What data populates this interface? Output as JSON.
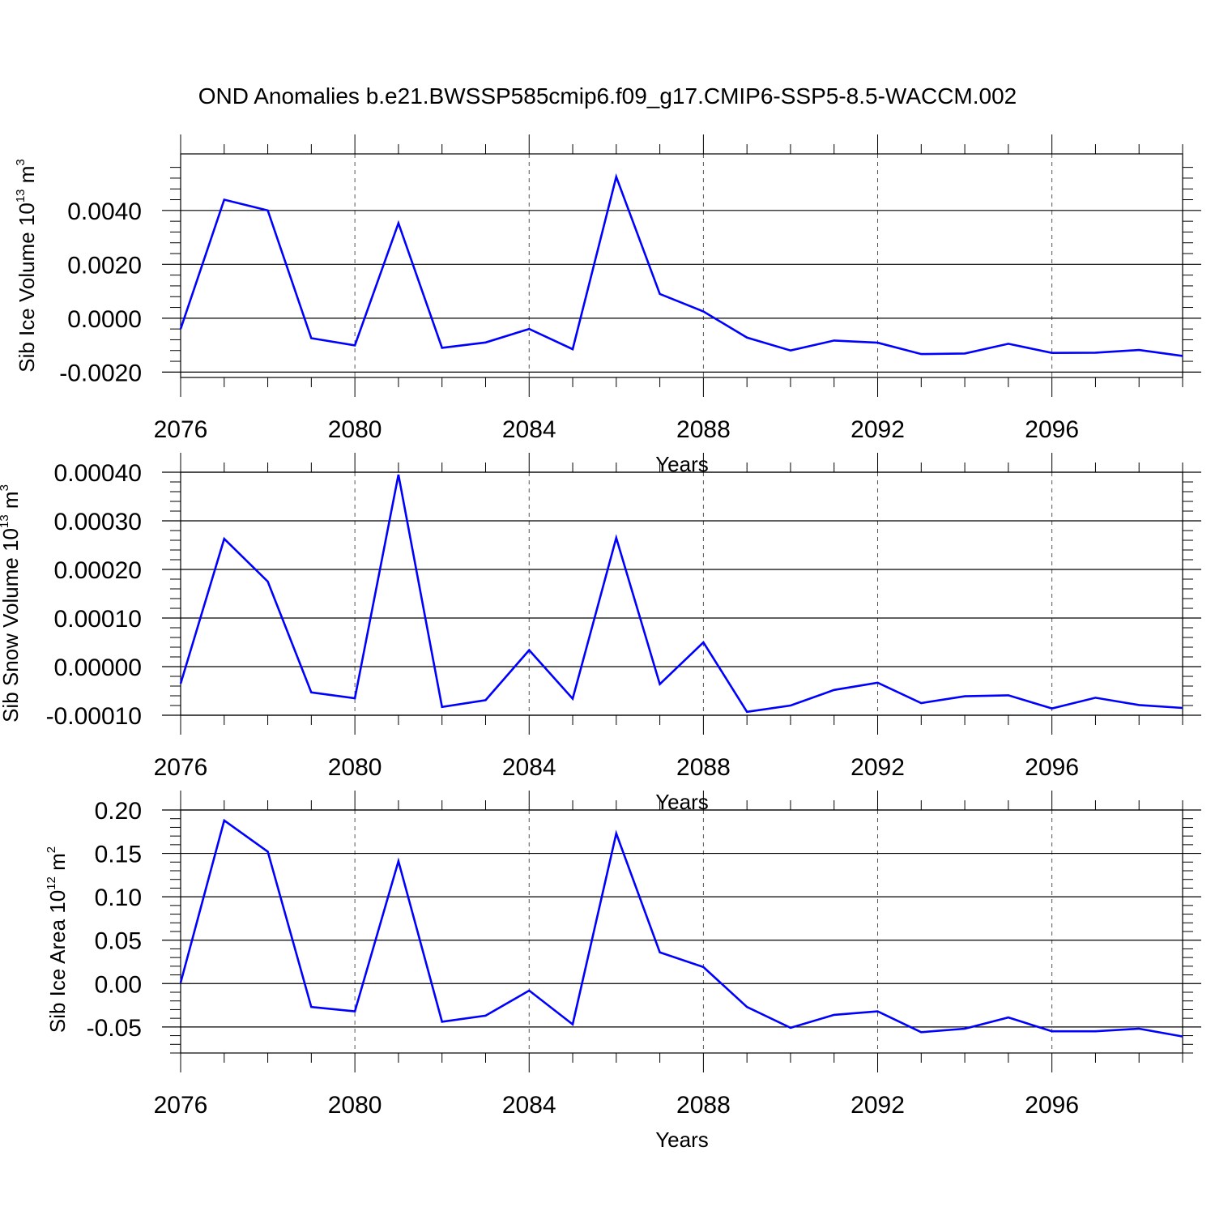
{
  "title": "OND Anomalies b.e21.BWSSP585cmip6.f09_g17.CMIP6-SSP5-8.5-WACCM.002",
  "colors": {
    "series": "#0000ff",
    "axis": "#000000",
    "grid": "#555555"
  },
  "chart_data": [
    {
      "type": "line",
      "xlabel": "Years",
      "ylabel": {
        "text": "Sib Ice Volume 10",
        "exp": "13",
        "unit": " m",
        "unit_exp": "3"
      },
      "xlim": [
        2076,
        2099
      ],
      "ylim": [
        -0.0022,
        0.0061
      ],
      "grid": "vertical dashed at major x ticks",
      "x_ticks": [
        2076,
        2080,
        2084,
        2088,
        2092,
        2096
      ],
      "x_tick_labels": [
        "2076",
        "2080",
        "2084",
        "2088",
        "2092",
        "2096"
      ],
      "y_ticks": [
        -0.002,
        0.0,
        0.002,
        0.004
      ],
      "y_tick_labels": [
        "-0.0020",
        "0.0000",
        "0.0020",
        "0.0040"
      ],
      "x": [
        2076,
        2077,
        2078,
        2079,
        2080,
        2081,
        2082,
        2083,
        2084,
        2085,
        2086,
        2087,
        2088,
        2089,
        2090,
        2091,
        2092,
        2093,
        2094,
        2095,
        2096,
        2097,
        2098,
        2099
      ],
      "series": [
        {
          "values": [
            -0.0004,
            0.0044,
            0.004,
            -0.00074,
            -0.00101,
            0.00353,
            -0.0011,
            -0.0009,
            -0.0004,
            -0.00115,
            0.00525,
            0.0009,
            0.00025,
            -0.00072,
            -0.0012,
            -0.00083,
            -0.00091,
            -0.00133,
            -0.00131,
            -0.00095,
            -0.00129,
            -0.00128,
            -0.00118,
            -0.0014
          ]
        }
      ]
    },
    {
      "type": "line",
      "xlabel": "Years",
      "ylabel": {
        "text": "Sib Snow Volume 10",
        "exp": "13",
        "unit": " m",
        "unit_exp": "3"
      },
      "xlim": [
        2076,
        2099
      ],
      "ylim": [
        -0.0001,
        0.0004
      ],
      "grid": "vertical dashed at major x ticks",
      "x_ticks": [
        2076,
        2080,
        2084,
        2088,
        2092,
        2096
      ],
      "x_tick_labels": [
        "2076",
        "2080",
        "2084",
        "2088",
        "2092",
        "2096"
      ],
      "y_ticks": [
        -0.0001,
        0.0,
        0.0001,
        0.0002,
        0.0003,
        0.0004
      ],
      "y_tick_labels": [
        "-0.00010",
        "0.00000",
        "0.00010",
        "0.00020",
        "0.00030",
        "0.00040"
      ],
      "x": [
        2076,
        2077,
        2078,
        2079,
        2080,
        2081,
        2082,
        2083,
        2084,
        2085,
        2086,
        2087,
        2088,
        2089,
        2090,
        2091,
        2092,
        2093,
        2094,
        2095,
        2096,
        2097,
        2098,
        2099
      ],
      "series": [
        {
          "values": [
            -3.5e-05,
            0.000263,
            0.000175,
            -5.3e-05,
            -6.5e-05,
            0.000395,
            -8.3e-05,
            -6.9e-05,
            3.4e-05,
            -6.6e-05,
            0.000265,
            -3.6e-05,
            5e-05,
            -9.3e-05,
            -8e-05,
            -4.8e-05,
            -3.3e-05,
            -7.5e-05,
            -6.1e-05,
            -5.9e-05,
            -8.6e-05,
            -6.4e-05,
            -7.9e-05,
            -8.5e-05
          ]
        }
      ]
    },
    {
      "type": "line",
      "xlabel": "Years",
      "ylabel": {
        "text": "Sib Ice Area 10",
        "exp": "12",
        "unit": " m",
        "unit_exp": "2"
      },
      "xlim": [
        2076,
        2099
      ],
      "ylim": [
        -0.08,
        0.2
      ],
      "grid": "vertical dashed at major x ticks",
      "x_ticks": [
        2076,
        2080,
        2084,
        2088,
        2092,
        2096
      ],
      "x_tick_labels": [
        "2076",
        "2080",
        "2084",
        "2088",
        "2092",
        "2096"
      ],
      "y_ticks": [
        -0.05,
        0.0,
        0.05,
        0.1,
        0.15,
        0.2
      ],
      "y_tick_labels": [
        "-0.05",
        "0.00",
        "0.05",
        "0.10",
        "0.15",
        "0.20"
      ],
      "x": [
        2076,
        2077,
        2078,
        2079,
        2080,
        2081,
        2082,
        2083,
        2084,
        2085,
        2086,
        2087,
        2088,
        2089,
        2090,
        2091,
        2092,
        2093,
        2094,
        2095,
        2096,
        2097,
        2098,
        2099
      ],
      "series": [
        {
          "values": [
            0.001,
            0.188,
            0.152,
            -0.027,
            -0.032,
            0.141,
            -0.044,
            -0.037,
            -0.008,
            -0.047,
            0.173,
            0.036,
            0.019,
            -0.027,
            -0.051,
            -0.036,
            -0.032,
            -0.056,
            -0.052,
            -0.039,
            -0.055,
            -0.055,
            -0.052,
            -0.061
          ]
        }
      ]
    }
  ]
}
